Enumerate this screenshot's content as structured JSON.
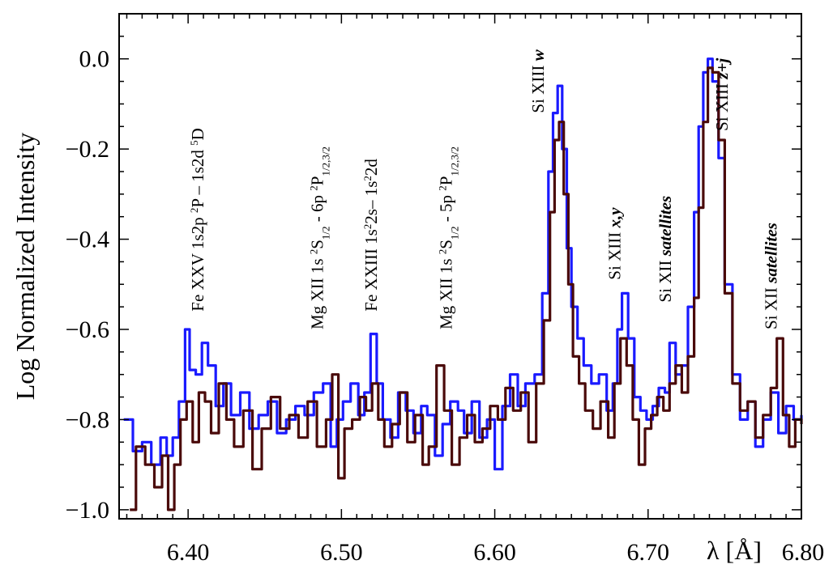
{
  "chart_data": {
    "type": "line",
    "title": "",
    "xlabel": "λ [Å]",
    "ylabel": "Log Normalized Intensity",
    "xlim": [
      6.355,
      6.8
    ],
    "ylim": [
      -1.02,
      0.1
    ],
    "xticks": [
      {
        "value": 6.4,
        "label": "6.40"
      },
      {
        "value": 6.5,
        "label": "6.50"
      },
      {
        "value": 6.6,
        "label": "6.60"
      },
      {
        "value": 6.7,
        "label": "6.70"
      },
      {
        "value": 6.8,
        "label": "6.80"
      }
    ],
    "yticks": [
      {
        "value": 0.0,
        "label": "0.0"
      },
      {
        "value": -0.2,
        "label": "−0.2"
      },
      {
        "value": -0.4,
        "label": "−0.4"
      },
      {
        "value": -0.6,
        "label": "−0.6"
      },
      {
        "value": -0.8,
        "label": "−0.8"
      },
      {
        "value": -1.0,
        "label": "−1.0"
      }
    ],
    "series": [
      {
        "name": "blue spectrum",
        "color": "#1a1aff",
        "x": [
          6.358,
          6.364,
          6.37,
          6.376,
          6.382,
          6.386,
          6.39,
          6.394,
          6.398,
          6.401,
          6.405,
          6.409,
          6.413,
          6.418,
          6.423,
          6.428,
          6.434,
          6.44,
          6.446,
          6.452,
          6.458,
          6.464,
          6.47,
          6.476,
          6.482,
          6.488,
          6.493,
          6.497,
          6.501,
          6.506,
          6.511,
          6.515,
          6.519,
          6.523,
          6.527,
          6.532,
          6.537,
          6.542,
          6.547,
          6.552,
          6.556,
          6.561,
          6.566,
          6.571,
          6.576,
          6.58,
          6.585,
          6.59,
          6.595,
          6.6,
          6.605,
          6.61,
          6.615,
          6.62,
          6.626,
          6.631,
          6.635,
          6.638,
          6.641,
          6.644,
          6.647,
          6.65,
          6.654,
          6.658,
          6.663,
          6.668,
          6.673,
          6.677,
          6.68,
          6.683,
          6.687,
          6.691,
          6.695,
          6.699,
          6.703,
          6.707,
          6.711,
          6.714,
          6.718,
          6.722,
          6.726,
          6.73,
          6.733,
          6.736,
          6.739,
          6.742,
          6.746,
          6.75,
          6.755,
          6.76,
          6.765,
          6.77,
          6.775,
          6.78,
          6.785,
          6.79,
          6.795,
          6.8
        ],
        "y": [
          -0.8,
          -0.87,
          -0.85,
          -0.9,
          -0.84,
          -0.88,
          -0.84,
          -0.76,
          -0.6,
          -0.69,
          -0.7,
          -0.63,
          -0.68,
          -0.77,
          -0.72,
          -0.79,
          -0.74,
          -0.82,
          -0.79,
          -0.76,
          -0.83,
          -0.8,
          -0.77,
          -0.79,
          -0.74,
          -0.72,
          -0.86,
          -0.8,
          -0.76,
          -0.72,
          -0.79,
          -0.74,
          -0.61,
          -0.72,
          -0.8,
          -0.84,
          -0.74,
          -0.78,
          -0.83,
          -0.77,
          -0.79,
          -0.88,
          -0.81,
          -0.76,
          -0.78,
          -0.83,
          -0.76,
          -0.84,
          -0.8,
          -0.91,
          -0.77,
          -0.7,
          -0.77,
          -0.72,
          -0.7,
          -0.52,
          -0.25,
          -0.12,
          -0.06,
          -0.2,
          -0.42,
          -0.55,
          -0.62,
          -0.68,
          -0.72,
          -0.7,
          -0.78,
          -0.72,
          -0.6,
          -0.52,
          -0.62,
          -0.75,
          -0.78,
          -0.8,
          -0.77,
          -0.73,
          -0.74,
          -0.63,
          -0.7,
          -0.68,
          -0.55,
          -0.34,
          -0.15,
          -0.03,
          0.0,
          -0.05,
          -0.22,
          -0.5,
          -0.7,
          -0.8,
          -0.76,
          -0.86,
          -0.8,
          -0.74,
          -0.83,
          -0.77,
          -0.8,
          -0.79
        ]
      },
      {
        "name": "brown spectrum",
        "color": "#4a0a0a",
        "x": [
          6.362,
          6.366,
          6.372,
          6.378,
          6.383,
          6.387,
          6.391,
          6.395,
          6.399,
          6.403,
          6.407,
          6.411,
          6.415,
          6.42,
          6.425,
          6.43,
          6.436,
          6.442,
          6.448,
          6.454,
          6.46,
          6.466,
          6.472,
          6.478,
          6.484,
          6.49,
          6.494,
          6.498,
          6.502,
          6.507,
          6.512,
          6.516,
          6.52,
          6.524,
          6.528,
          6.533,
          6.538,
          6.543,
          6.548,
          6.553,
          6.557,
          6.562,
          6.567,
          6.572,
          6.577,
          6.582,
          6.587,
          6.592,
          6.597,
          6.602,
          6.607,
          6.612,
          6.617,
          6.622,
          6.627,
          6.632,
          6.636,
          6.639,
          6.642,
          6.645,
          6.648,
          6.651,
          6.655,
          6.659,
          6.664,
          6.669,
          6.674,
          6.678,
          6.682,
          6.686,
          6.69,
          6.694,
          6.698,
          6.702,
          6.706,
          6.71,
          6.714,
          6.718,
          6.722,
          6.726,
          6.73,
          6.733,
          6.736,
          6.739,
          6.742,
          6.746,
          6.75,
          6.755,
          6.76,
          6.765,
          6.77,
          6.775,
          6.78,
          6.784,
          6.788,
          6.792,
          6.796,
          6.8
        ],
        "y": [
          -1.0,
          -0.86,
          -0.9,
          -0.95,
          -0.88,
          -1.0,
          -0.9,
          -0.8,
          -0.76,
          -0.85,
          -0.74,
          -0.76,
          -0.83,
          -0.72,
          -0.8,
          -0.86,
          -0.78,
          -0.91,
          -0.82,
          -0.75,
          -0.82,
          -0.79,
          -0.84,
          -0.76,
          -0.86,
          -0.8,
          -0.7,
          -0.93,
          -0.82,
          -0.8,
          -0.75,
          -0.78,
          -0.72,
          -0.8,
          -0.86,
          -0.81,
          -0.74,
          -0.85,
          -0.79,
          -0.9,
          -0.86,
          -0.68,
          -0.78,
          -0.9,
          -0.84,
          -0.79,
          -0.85,
          -0.82,
          -0.77,
          -0.8,
          -0.73,
          -0.78,
          -0.74,
          -0.85,
          -0.72,
          -0.58,
          -0.34,
          -0.18,
          -0.14,
          -0.3,
          -0.5,
          -0.66,
          -0.72,
          -0.78,
          -0.82,
          -0.76,
          -0.84,
          -0.72,
          -0.62,
          -0.68,
          -0.8,
          -0.9,
          -0.82,
          -0.79,
          -0.75,
          -0.78,
          -0.72,
          -0.68,
          -0.74,
          -0.66,
          -0.53,
          -0.33,
          -0.14,
          -0.02,
          -0.03,
          -0.18,
          -0.52,
          -0.72,
          -0.78,
          -0.76,
          -0.84,
          -0.79,
          -0.73,
          -0.62,
          -0.79,
          -0.86,
          -0.8,
          -0.81
        ]
      }
    ],
    "annotations": [
      {
        "x": 6.41,
        "y": -0.56,
        "parts": [
          {
            "t": "Fe XXV 1s2p "
          },
          {
            "t": "2",
            "sup": true
          },
          {
            "t": "P – 1s2d "
          },
          {
            "t": "5",
            "sup": true
          },
          {
            "t": "D"
          }
        ]
      },
      {
        "x": 6.488,
        "y": -0.6,
        "parts": [
          {
            "t": "Mg XII 1s "
          },
          {
            "t": "2",
            "sup": true
          },
          {
            "t": "S"
          },
          {
            "t": "1/2",
            "sub": true
          },
          {
            "t": " - 6p "
          },
          {
            "t": "2",
            "sup": true
          },
          {
            "t": "P"
          },
          {
            "t": "1/2,3/2",
            "sub": true
          }
        ]
      },
      {
        "x": 6.523,
        "y": -0.56,
        "parts": [
          {
            "t": "Fe XXIII 1s"
          },
          {
            "t": "2",
            "sup": true
          },
          {
            "t": "2s– 1s"
          },
          {
            "t": "2",
            "sup": true
          },
          {
            "t": "2d"
          }
        ]
      },
      {
        "x": 6.572,
        "y": -0.6,
        "parts": [
          {
            "t": "Mg XII 1s "
          },
          {
            "t": "2",
            "sup": true
          },
          {
            "t": "S"
          },
          {
            "t": "1/2",
            "sub": true
          },
          {
            "t": " - 5p "
          },
          {
            "t": "2",
            "sup": true
          },
          {
            "t": "P"
          },
          {
            "t": "1/2,3/2",
            "sub": true
          }
        ]
      },
      {
        "x": 6.632,
        "y": -0.12,
        "parts": [
          {
            "t": "Si XIII "
          },
          {
            "t": "w",
            "it": true
          }
        ]
      },
      {
        "x": 6.682,
        "y": -0.49,
        "parts": [
          {
            "t": "Si XIII  "
          },
          {
            "t": "x,y",
            "it": true
          }
        ]
      },
      {
        "x": 6.715,
        "y": -0.54,
        "parts": [
          {
            "t": "Si XII "
          },
          {
            "t": "satellites",
            "it": true
          }
        ]
      },
      {
        "x": 6.752,
        "y": -0.16,
        "parts": [
          {
            "t": "Si XIII "
          },
          {
            "t": "z+j",
            "it": true
          }
        ]
      },
      {
        "x": 6.784,
        "y": -0.6,
        "parts": [
          {
            "t": "Si XII "
          },
          {
            "t": "satellites",
            "it": true
          }
        ]
      }
    ]
  }
}
